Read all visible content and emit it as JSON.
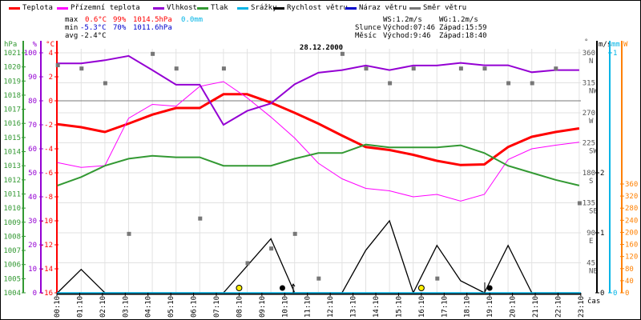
{
  "colors": {
    "temp": "#ff0000",
    "apparent": "#ff00ff",
    "humidity": "#9400d3",
    "pressure": "#339933",
    "precip": "#00b4e6",
    "wind": "#000000",
    "gust": "#0000cc",
    "direction": "#777777",
    "orange": "#ff8000",
    "blue": "#0000cc",
    "grid": "#e2e2e2"
  },
  "legend": [
    {
      "label": "Teplota",
      "color": "#ff0000"
    },
    {
      "label": "Přízemní teplota",
      "color": "#ff00ff"
    },
    {
      "label": "Vlhkost",
      "color": "#9400d3"
    },
    {
      "label": "Tlak",
      "color": "#339933"
    },
    {
      "label": "Srážky",
      "color": "#00b4e6"
    },
    {
      "label": "Rychlost větru",
      "color": "#000000"
    },
    {
      "label": "Náraz větru",
      "color": "#0000cc"
    },
    {
      "label": "Směr větru",
      "color": "#777777"
    }
  ],
  "stats": {
    "max_label": "max",
    "max_temp": "0.6°C",
    "max_hum": "99%",
    "max_press": "1014.5hPa",
    "max_precip": "0.0mm",
    "min_label": "min",
    "min_temp": "-5.3°C",
    "min_hum": "70%",
    "min_press": "1011.6hPa",
    "avg_label": "avg",
    "avg_temp": "-2.4°C"
  },
  "info": {
    "ws": "WS:1.2m/s",
    "wg": "WG:1.2m/s",
    "sun_label": "Slunce",
    "sun_rise": "Východ:07:46",
    "sun_set": "Západ:15:59",
    "moon_label": "Měsíc",
    "moon_rise": "Východ:9:46",
    "moon_set": "Západ:18:40"
  },
  "chart_data": {
    "type": "line",
    "title": "28.12.2000",
    "xlabel": "čas",
    "x_tick_labels": [
      "00:10",
      "01:10",
      "02:10",
      "03:10",
      "04:10",
      "05:10",
      "06:10",
      "07:10",
      "08:10",
      "09:10",
      "10:10",
      "11:10",
      "12:10",
      "13:10",
      "14:10",
      "15:10",
      "16:10",
      "17:10",
      "18:10",
      "19:10",
      "20:10",
      "21:10",
      "22:10",
      "23:10"
    ],
    "axes": {
      "pressure": {
        "unit": "hPa",
        "range": [
          1004,
          1021
        ],
        "ticks": [
          1004,
          1005,
          1006,
          1007,
          1008,
          1009,
          1010,
          1011,
          1012,
          1013,
          1014,
          1015,
          1016,
          1017,
          1018,
          1019,
          1020,
          1021
        ]
      },
      "humidity": {
        "unit": "%",
        "range": [
          0,
          100
        ],
        "ticks": [
          0,
          10,
          20,
          30,
          40,
          50,
          60,
          70,
          80,
          90,
          100
        ]
      },
      "temperature": {
        "unit": "°C",
        "range": [
          -16,
          4
        ],
        "ticks": [
          -16,
          -14,
          -12,
          -10,
          -8,
          -6,
          -4,
          -2,
          0,
          2,
          4
        ]
      },
      "direction": {
        "unit": "°",
        "range": [
          0,
          360
        ],
        "ticks": [
          {
            "v": 360,
            "c": "N"
          },
          {
            "v": 315,
            "c": "NW"
          },
          {
            "v": 270,
            "c": "W"
          },
          {
            "v": 225,
            "c": "SW"
          },
          {
            "v": 180,
            "c": "S"
          },
          {
            "v": 135,
            "c": "SE"
          },
          {
            "v": 90,
            "c": "E"
          },
          {
            "v": 45,
            "c": "NE"
          },
          {
            "v": 0,
            "c": ""
          }
        ]
      },
      "wind": {
        "unit": "m/s",
        "range": [
          0,
          2.4
        ],
        "ticks": [
          0,
          1,
          2
        ]
      },
      "precip": {
        "unit": "mm",
        "range": [
          0,
          1.33
        ],
        "ticks": [
          0,
          1
        ]
      },
      "power": {
        "unit": "W",
        "range": [
          0,
          650
        ],
        "ticks": [
          0,
          40,
          80,
          120,
          160,
          200,
          240,
          280,
          320,
          360
        ]
      }
    },
    "series": [
      {
        "name": "Teplota",
        "axis": "temperature",
        "values": [
          -1.95,
          -2.2,
          -2.6,
          -1.9,
          -1.15,
          -0.6,
          -0.6,
          0.55,
          0.55,
          -0.15,
          -1.0,
          -1.9,
          -2.9,
          -3.85,
          -4.1,
          -4.5,
          -5.0,
          -5.35,
          -5.3,
          -3.85,
          -3.0,
          -2.6,
          -2.3
        ]
      },
      {
        "name": "Přízemní teplota",
        "axis": "temperature",
        "values": [
          -5.15,
          -5.55,
          -5.4,
          -1.45,
          -0.3,
          -0.45,
          1.2,
          1.6,
          0.25,
          -1.35,
          -3.1,
          -5.2,
          -6.5,
          -7.3,
          -7.5,
          -8.0,
          -7.8,
          -8.35,
          -7.8,
          -4.9,
          -4.0,
          -3.7,
          -3.45
        ]
      },
      {
        "name": "Vlhkost",
        "axis": "humidity",
        "values": [
          95.6,
          95.6,
          96.9,
          98.7,
          92.8,
          86.7,
          86.7,
          70,
          75.8,
          78.9,
          86.9,
          91.7,
          92.8,
          94.7,
          92.8,
          94.7,
          94.7,
          95.8,
          94.8,
          94.8,
          91.9,
          92.8,
          92.8
        ]
      },
      {
        "name": "Tlak",
        "axis": "pressure",
        "values": [
          1011.6,
          1012.2,
          1013.0,
          1013.5,
          1013.7,
          1013.6,
          1013.6,
          1013.0,
          1013.0,
          1013.0,
          1013.5,
          1013.9,
          1013.9,
          1014.5,
          1014.3,
          1014.3,
          1014.3,
          1014.45,
          1013.9,
          1013.0,
          1012.5,
          1012.0,
          1011.6
        ]
      },
      {
        "name": "Srážky",
        "axis": "precip",
        "values": [
          0,
          0,
          0,
          0,
          0,
          0,
          0,
          0,
          0,
          0,
          0,
          0,
          0,
          0,
          0,
          0,
          0,
          0,
          0,
          0,
          0,
          0,
          0
        ]
      },
      {
        "name": "Rychlost větru",
        "axis": "wind",
        "values": [
          0,
          0.39,
          0,
          0,
          0,
          0,
          0,
          0,
          0.45,
          0.9,
          0,
          0,
          0,
          0.71,
          1.2,
          0,
          0.79,
          0.2,
          0,
          0.79,
          0,
          0,
          0
        ]
      },
      {
        "name": "Směr větru",
        "axis": "direction",
        "values": [
          342,
          337,
          315,
          89,
          359,
          337,
          112,
          337,
          45,
          67,
          89,
          22,
          359,
          337,
          315,
          337,
          22,
          337,
          337,
          315,
          315,
          337,
          135
        ]
      }
    ],
    "markers": [
      {
        "type": "sun",
        "hour": 8.0
      },
      {
        "type": "sun",
        "hour": 16.0
      },
      {
        "type": "moon",
        "hour": 9.9
      },
      {
        "type": "moon",
        "hour": 19.0
      }
    ]
  }
}
